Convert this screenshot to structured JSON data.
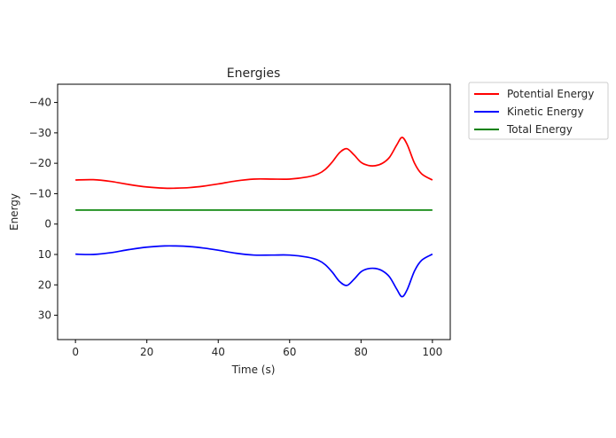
{
  "chart_data": {
    "type": "line",
    "title": "Energies",
    "xlabel": "Time (s)",
    "ylabel": "Energy",
    "xlim": [
      -5,
      105
    ],
    "ylim": [
      38,
      -46
    ],
    "y_inverted": true,
    "xticks": [
      0,
      20,
      40,
      60,
      80,
      100
    ],
    "yticks": [
      -40,
      -30,
      -20,
      -10,
      0,
      10,
      20,
      30
    ],
    "grid": false,
    "legend_position": "outside-top-right",
    "series": [
      {
        "name": "Potential Energy",
        "color": "#ff0000",
        "x": [
          0,
          5,
          10,
          15,
          20,
          25,
          28,
          32,
          36,
          40,
          45,
          50,
          55,
          60,
          65,
          68,
          70,
          72,
          74,
          76,
          78,
          80,
          82,
          84,
          86,
          88,
          90,
          91.5,
          93,
          95,
          97,
          100
        ],
        "y": [
          -14.5,
          -14.6,
          -14.0,
          -13.0,
          -12.2,
          -11.8,
          -11.8,
          -12.0,
          -12.5,
          -13.2,
          -14.2,
          -14.8,
          -14.8,
          -14.8,
          -15.5,
          -16.5,
          -18.0,
          -20.5,
          -23.5,
          -24.8,
          -22.8,
          -20.3,
          -19.3,
          -19.2,
          -20.0,
          -22.0,
          -26.0,
          -28.5,
          -26.0,
          -20.0,
          -16.5,
          -14.5
        ]
      },
      {
        "name": "Kinetic Energy",
        "color": "#0000ff",
        "x": [
          0,
          5,
          10,
          15,
          20,
          25,
          28,
          32,
          36,
          40,
          45,
          50,
          55,
          60,
          65,
          68,
          70,
          72,
          74,
          76,
          78,
          80,
          82,
          84,
          86,
          88,
          90,
          91.5,
          93,
          95,
          97,
          100
        ],
        "y": [
          9.9,
          10.0,
          9.4,
          8.4,
          7.6,
          7.2,
          7.2,
          7.4,
          7.9,
          8.6,
          9.6,
          10.2,
          10.2,
          10.2,
          10.9,
          11.9,
          13.4,
          15.9,
          18.9,
          20.2,
          18.2,
          15.7,
          14.7,
          14.6,
          15.4,
          17.4,
          21.4,
          23.9,
          21.4,
          15.4,
          11.9,
          9.9
        ]
      },
      {
        "name": "Total Energy",
        "color": "#008000",
        "x": [
          0,
          100
        ],
        "y": [
          -4.6,
          -4.6
        ]
      }
    ]
  }
}
